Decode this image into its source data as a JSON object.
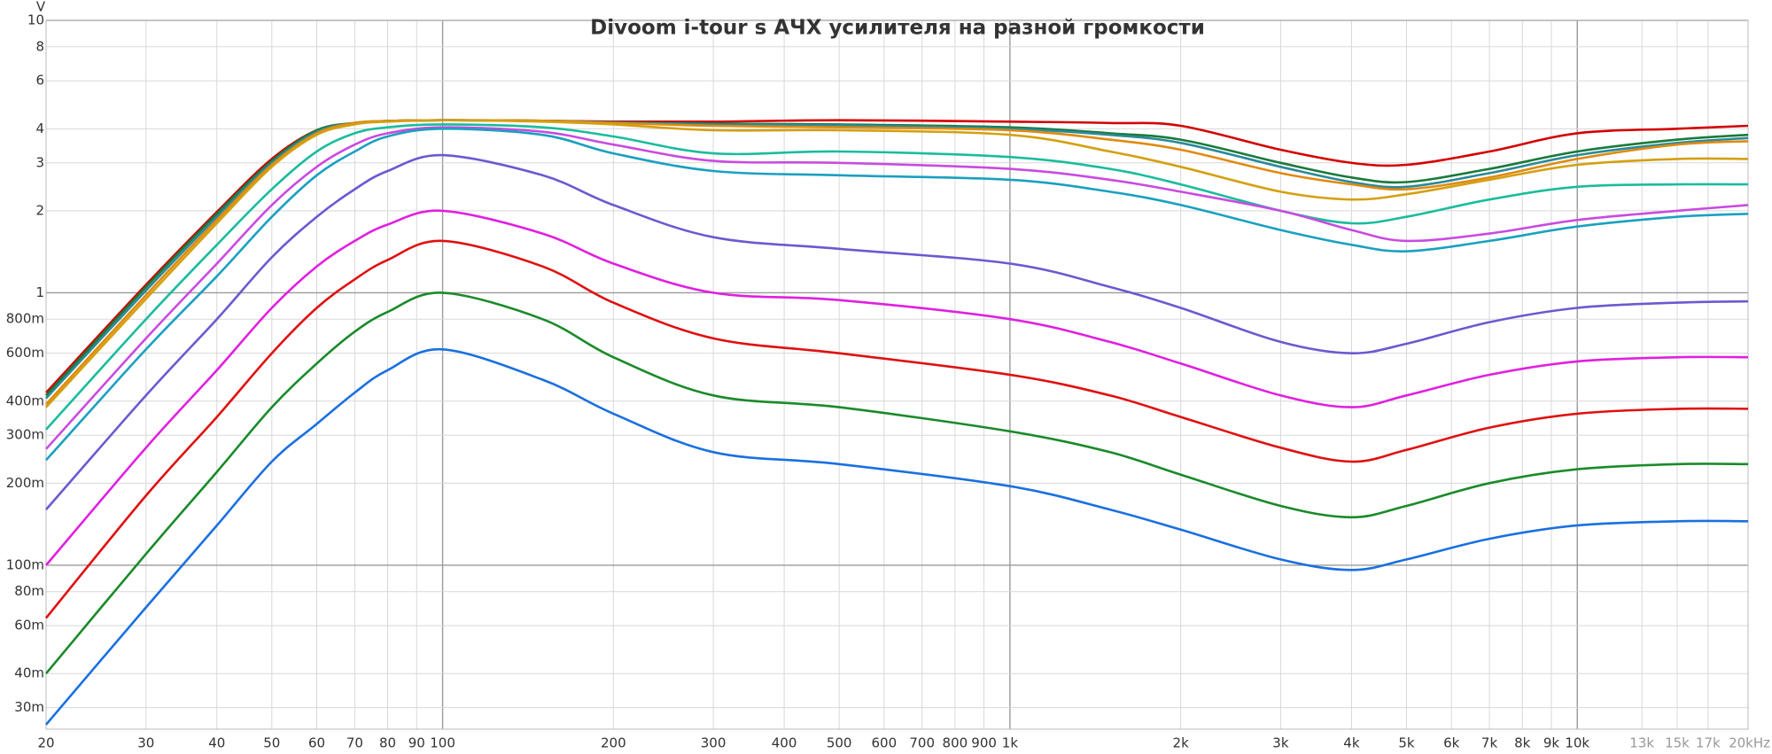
{
  "chart_data": {
    "type": "line",
    "title": "Divoom i-tour s АЧХ усилителя на разной громкости",
    "y_label": "V",
    "x_log": true,
    "y_log": true,
    "grid": true,
    "xlim": [
      20,
      20000
    ],
    "ylim": [
      0.025,
      10
    ],
    "xticks": [
      20,
      30,
      40,
      50,
      60,
      70,
      80,
      90,
      100,
      200,
      300,
      400,
      500,
      600,
      700,
      800,
      900,
      {
        "value": 1000,
        "label": "1k"
      },
      {
        "value": 2000,
        "label": "2k"
      },
      {
        "value": 3000,
        "label": "3k"
      },
      {
        "value": 4000,
        "label": "4k"
      },
      {
        "value": 5000,
        "label": "5k"
      },
      {
        "value": 6000,
        "label": "6k"
      },
      {
        "value": 7000,
        "label": "7k"
      },
      {
        "value": 8000,
        "label": "8k"
      },
      {
        "value": 9000,
        "label": "9k"
      },
      {
        "value": 10000,
        "label": "10k"
      },
      {
        "value": 13000,
        "label": "13k"
      },
      {
        "value": 15000,
        "label": "15k"
      },
      {
        "value": 17000,
        "label": "17k"
      },
      {
        "value": 20000,
        "label": "20kHz"
      }
    ],
    "yticks": [
      10,
      8,
      6,
      4,
      3,
      2,
      1,
      {
        "value": 0.8,
        "label": "800m"
      },
      {
        "value": 0.6,
        "label": "600m"
      },
      {
        "value": 0.4,
        "label": "400m"
      },
      {
        "value": 0.3,
        "label": "300m"
      },
      {
        "value": 0.2,
        "label": "200m"
      },
      {
        "value": 0.1,
        "label": "100m"
      },
      {
        "value": 0.08,
        "label": "80m"
      },
      {
        "value": 0.06,
        "label": "60m"
      },
      {
        "value": 0.04,
        "label": "40m"
      },
      {
        "value": 0.03,
        "label": "30m"
      }
    ],
    "x": [
      20,
      30,
      40,
      50,
      60,
      70,
      80,
      100,
      150,
      200,
      300,
      500,
      1000,
      1500,
      2000,
      3000,
      4000,
      5000,
      7000,
      10000,
      15000,
      20000
    ],
    "series": [
      {
        "color": "#d40000",
        "values": [
          0.43,
          1.07,
          1.98,
          3.1,
          3.95,
          4.2,
          4.27,
          4.3,
          4.28,
          4.25,
          4.25,
          4.3,
          4.25,
          4.2,
          4.1,
          3.35,
          3.0,
          2.95,
          3.3,
          3.85,
          4.0,
          4.1
        ]
      },
      {
        "color": "#1a7a3a",
        "values": [
          0.42,
          1.05,
          1.95,
          3.05,
          3.95,
          4.2,
          4.27,
          4.3,
          4.28,
          4.22,
          4.18,
          4.15,
          4.05,
          3.85,
          3.65,
          3.0,
          2.65,
          2.55,
          2.85,
          3.3,
          3.65,
          3.8
        ]
      },
      {
        "color": "#2a8a9a",
        "values": [
          0.41,
          1.02,
          1.9,
          3.0,
          3.9,
          4.2,
          4.27,
          4.3,
          4.28,
          4.22,
          4.15,
          4.12,
          4.0,
          3.8,
          3.55,
          2.9,
          2.55,
          2.45,
          2.75,
          3.2,
          3.55,
          3.7
        ]
      },
      {
        "color": "#e08a10",
        "values": [
          0.39,
          0.98,
          1.85,
          2.95,
          3.85,
          4.2,
          4.27,
          4.3,
          4.28,
          4.2,
          4.1,
          4.05,
          3.95,
          3.65,
          3.35,
          2.75,
          2.5,
          2.4,
          2.65,
          3.1,
          3.5,
          3.6
        ]
      },
      {
        "color": "#d4a010",
        "values": [
          0.38,
          0.95,
          1.8,
          2.9,
          3.8,
          4.15,
          4.25,
          4.3,
          4.25,
          4.15,
          3.95,
          3.95,
          3.8,
          3.3,
          2.9,
          2.35,
          2.2,
          2.3,
          2.6,
          2.95,
          3.1,
          3.1
        ]
      },
      {
        "color": "#1abc9c",
        "values": [
          0.315,
          0.8,
          1.5,
          2.4,
          3.3,
          3.85,
          4.05,
          4.15,
          4.05,
          3.75,
          3.25,
          3.3,
          3.15,
          2.85,
          2.5,
          2.0,
          1.8,
          1.9,
          2.2,
          2.45,
          2.5,
          2.5
        ]
      },
      {
        "color": "#c84be0",
        "values": [
          0.267,
          0.68,
          1.28,
          2.1,
          2.9,
          3.5,
          3.85,
          4.05,
          3.9,
          3.5,
          3.05,
          3.0,
          2.85,
          2.6,
          2.35,
          2.0,
          1.7,
          1.55,
          1.65,
          1.85,
          2.0,
          2.1
        ]
      },
      {
        "color": "#1aa0c0",
        "values": [
          0.243,
          0.62,
          1.15,
          1.9,
          2.7,
          3.3,
          3.75,
          4.0,
          3.8,
          3.25,
          2.8,
          2.7,
          2.6,
          2.35,
          2.1,
          1.7,
          1.5,
          1.42,
          1.55,
          1.75,
          1.9,
          1.95
        ]
      },
      {
        "color": "#6a5ad0",
        "values": [
          0.16,
          0.42,
          0.8,
          1.35,
          1.9,
          2.4,
          2.8,
          3.2,
          2.7,
          2.1,
          1.6,
          1.45,
          1.28,
          1.05,
          0.88,
          0.66,
          0.6,
          0.65,
          0.78,
          0.88,
          0.92,
          0.93
        ]
      },
      {
        "color": "#e020e0",
        "values": [
          0.1,
          0.27,
          0.52,
          0.88,
          1.25,
          1.55,
          1.78,
          2.0,
          1.65,
          1.28,
          1.0,
          0.94,
          0.8,
          0.66,
          0.55,
          0.42,
          0.38,
          0.42,
          0.5,
          0.56,
          0.58,
          0.58
        ]
      },
      {
        "color": "#e01010",
        "values": [
          0.064,
          0.18,
          0.35,
          0.6,
          0.88,
          1.12,
          1.32,
          1.55,
          1.25,
          0.92,
          0.68,
          0.6,
          0.5,
          0.42,
          0.35,
          0.27,
          0.24,
          0.265,
          0.32,
          0.36,
          0.375,
          0.375
        ]
      },
      {
        "color": "#1a8a2a",
        "values": [
          0.04,
          0.11,
          0.22,
          0.38,
          0.55,
          0.72,
          0.85,
          1.0,
          0.8,
          0.58,
          0.42,
          0.38,
          0.31,
          0.26,
          0.215,
          0.165,
          0.15,
          0.165,
          0.2,
          0.225,
          0.235,
          0.235
        ]
      },
      {
        "color": "#1a70e0",
        "values": [
          0.026,
          0.07,
          0.14,
          0.24,
          0.33,
          0.43,
          0.52,
          0.62,
          0.48,
          0.36,
          0.26,
          0.235,
          0.195,
          0.16,
          0.135,
          0.105,
          0.096,
          0.105,
          0.125,
          0.14,
          0.145,
          0.145
        ]
      }
    ]
  }
}
